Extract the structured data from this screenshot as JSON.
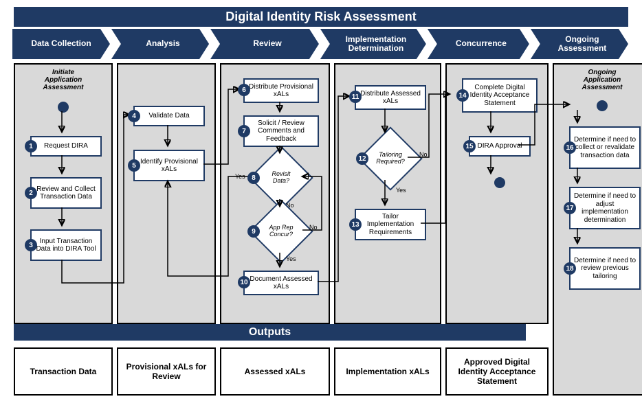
{
  "title": "Digital Identity Risk Assessment",
  "outputs_label": "Outputs",
  "phases": [
    "Data Collection",
    "Analysis",
    "Review",
    "Implementation\nDetermination",
    "Concurrence",
    "Ongoing\nAssessment"
  ],
  "phase_widths": [
    144,
    144,
    160,
    156,
    150,
    144
  ],
  "captions": {
    "c1": "Initiate\nApplication\nAssessment",
    "c6": "Ongoing\nApplication\nAssessment"
  },
  "steps": {
    "1": "Request DIRA",
    "2": "Review and Collect Transaction Data",
    "3": "Input Transaction Data into DIRA Tool",
    "4": "Validate Data",
    "5": "Identify Provisional xALs",
    "6": "Distribute Provisional xALs",
    "7": "Solicit / Review Comments and Feedback",
    "8": "Revisit Data?",
    "9": "App Rep Concur?",
    "10": "Document Assessed xALs",
    "11": "Distribute Assessed xALs",
    "12": "Tailoring Required?",
    "13": "Tailor Implementation Requirements",
    "14": "Complete Digital Identity Acceptance Statement",
    "15": "DIRA Approval",
    "16": "Determine if need to collect or revalidate transaction data",
    "17": "Determine if need to adjust implementation determination",
    "18": "Determine if need to review previous tailoring"
  },
  "edge_labels": {
    "yes8": "Yes",
    "no8": "No",
    "yes9": "Yes",
    "no9": "No",
    "yes12": "Yes",
    "no12": "No"
  },
  "outputs": [
    "Transaction Data",
    "Provisional xALs for Review",
    "Assessed xALs",
    "Implementation xALs",
    "Approved Digital Identity Acceptance Statement"
  ],
  "colors": {
    "brand": "#1f3a64",
    "panel": "#d9d9d9"
  }
}
